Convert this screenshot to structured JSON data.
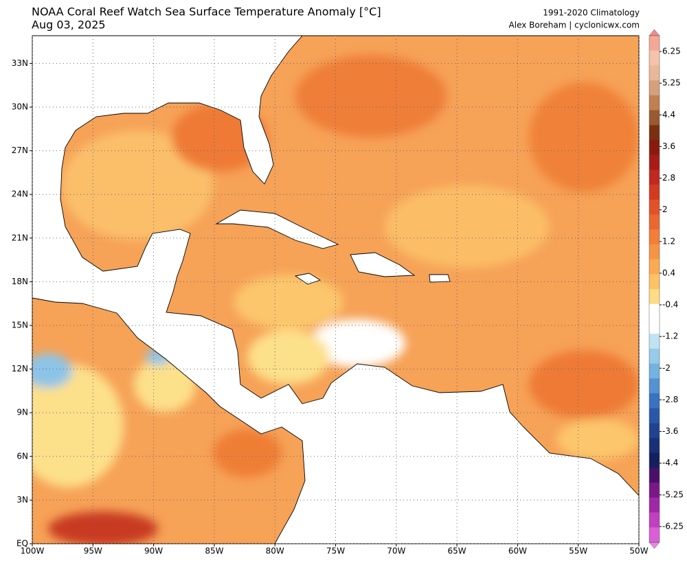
{
  "title": "NOAA Coral Reef Watch Sea Surface Temperature Anomaly [°C]",
  "date": "Aug 03, 2025",
  "climatology": "1991-2020 Climatology",
  "credit": "Alex Boreham | cyclonicwx.com",
  "map": {
    "lon_ticks": [
      {
        "value": -100,
        "label": "100W"
      },
      {
        "value": -95,
        "label": "95W"
      },
      {
        "value": -90,
        "label": "90W"
      },
      {
        "value": -85,
        "label": "85W"
      },
      {
        "value": -80,
        "label": "80W"
      },
      {
        "value": -75,
        "label": "75W"
      },
      {
        "value": -70,
        "label": "70W"
      },
      {
        "value": -65,
        "label": "65W"
      },
      {
        "value": -60,
        "label": "60W"
      },
      {
        "value": -55,
        "label": "55W"
      },
      {
        "value": -50,
        "label": "50W"
      }
    ],
    "lat_ticks": [
      {
        "value": 0,
        "label": "EQ"
      },
      {
        "value": 3,
        "label": "3N"
      },
      {
        "value": 6,
        "label": "6N"
      },
      {
        "value": 9,
        "label": "9N"
      },
      {
        "value": 12,
        "label": "12N"
      },
      {
        "value": 15,
        "label": "15N"
      },
      {
        "value": 18,
        "label": "18N"
      },
      {
        "value": 21,
        "label": "21N"
      },
      {
        "value": 24,
        "label": "24N"
      },
      {
        "value": 27,
        "label": "27N"
      },
      {
        "value": 30,
        "label": "30N"
      },
      {
        "value": 33,
        "label": "33N"
      }
    ]
  },
  "colorbar": {
    "ticks": [
      6.25,
      5.25,
      4.4,
      3.6,
      2.8,
      2,
      1.2,
      0.4,
      -0.4,
      -1.2,
      -2,
      -2.8,
      -3.6,
      -4.4,
      -5.25,
      -6.25
    ],
    "colors": [
      "#f28a8a",
      "#f4a898",
      "#f5c2ac",
      "#e8b898",
      "#d6a07c",
      "#c08050",
      "#9a5a30",
      "#7a3010",
      "#8a1a10",
      "#a81c18",
      "#c02820",
      "#d43a22",
      "#e25228",
      "#ea6830",
      "#f27e38",
      "#f69445",
      "#f9aa52",
      "#fcc264",
      "#fddc84",
      "#ffffff",
      "#ffffff",
      "#bfe3f3",
      "#96cbea",
      "#74b2e0",
      "#5492d0",
      "#3a72c0",
      "#2a58a8",
      "#204290",
      "#183076",
      "#14205c",
      "#4a1068",
      "#7a1888",
      "#a028a8",
      "#c040c0",
      "#d860d4",
      "#ec86e6"
    ]
  }
}
